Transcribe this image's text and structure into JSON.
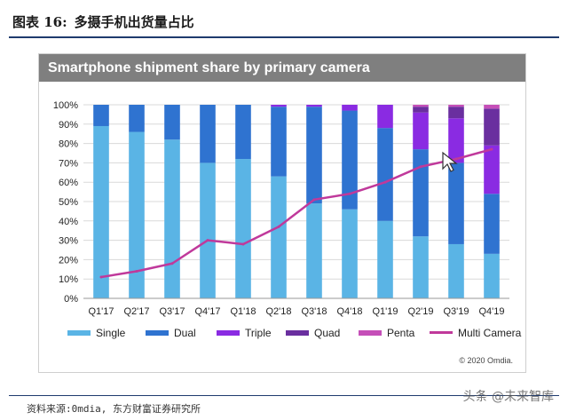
{
  "header": {
    "label": "图表 16:",
    "title": "多摄手机出货量占比"
  },
  "source_text": "资料来源:0mdia, 东方财富证券研究所",
  "watermark_text": "头条 @未来智库",
  "copyright": "© 2020 Omdia.",
  "colors": {
    "Single": "#5ab4e5",
    "Dual": "#2f73d0",
    "Triple": "#8a2be2",
    "Quad": "#6a2f9f",
    "Penta": "#c54fb8",
    "Multi Camera": "#c0399b",
    "header_rule": "#1f3b6e",
    "panel_title_bg": "#7f7f7f"
  },
  "chart_data": {
    "type": "bar",
    "stacked": true,
    "title": "Smartphone shipment share by primary camera",
    "xlabel": "",
    "ylabel": "",
    "ylim": [
      0,
      100
    ],
    "ytick_labels": [
      "0%",
      "10%",
      "20%",
      "30%",
      "40%",
      "50%",
      "60%",
      "70%",
      "80%",
      "90%",
      "100%"
    ],
    "categories": [
      "Q1'17",
      "Q2'17",
      "Q3'17",
      "Q4'17",
      "Q1'18",
      "Q2'18",
      "Q3'18",
      "Q4'18",
      "Q1'19",
      "Q2'19",
      "Q3'19",
      "Q4'19"
    ],
    "series": [
      {
        "name": "Single",
        "values": [
          89,
          86,
          82,
          70,
          72,
          63,
          49,
          46,
          40,
          32,
          28,
          23
        ]
      },
      {
        "name": "Dual",
        "values": [
          11,
          14,
          18,
          30,
          28,
          36,
          50,
          51,
          48,
          45,
          42,
          31
        ]
      },
      {
        "name": "Triple",
        "values": [
          0,
          0,
          0,
          0,
          0,
          1,
          1,
          3,
          12,
          19,
          23,
          25
        ]
      },
      {
        "name": "Quad",
        "values": [
          0,
          0,
          0,
          0,
          0,
          0,
          0,
          0,
          0,
          3,
          6,
          19
        ]
      },
      {
        "name": "Penta",
        "values": [
          0,
          0,
          0,
          0,
          0,
          0,
          0,
          0,
          0,
          1,
          1,
          2
        ]
      }
    ],
    "line_series": {
      "name": "Multi Camera",
      "values": [
        11,
        14,
        18,
        30,
        28,
        37,
        51,
        54,
        60,
        68,
        72,
        77
      ]
    },
    "legend": [
      "Single",
      "Dual",
      "Triple",
      "Quad",
      "Penta",
      "Multi Camera"
    ],
    "legend_position": "bottom",
    "grid": true
  }
}
